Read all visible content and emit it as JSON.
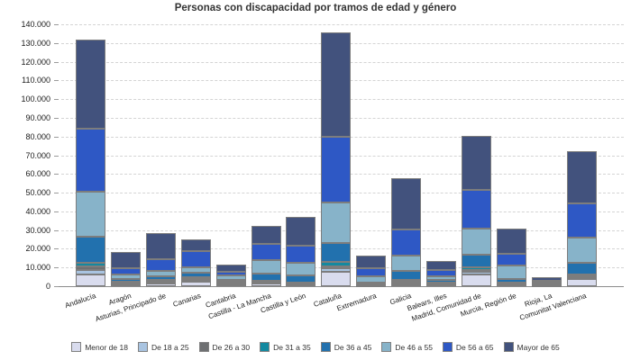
{
  "title": "Personas con discapacidad por tramos de edad y género",
  "chart_data": {
    "type": "bar",
    "stacked": true,
    "title": "Personas con discapacidad por tramos de edad y género",
    "xlabel": "",
    "ylabel": "",
    "ylim": [
      0,
      140000
    ],
    "ytick_step": 10000,
    "ytick_labels": [
      "0",
      "10.000",
      "20.000",
      "30.000",
      "40.000",
      "50.000",
      "60.000",
      "70.000",
      "80.000",
      "90.000",
      "100.000",
      "110.000",
      "120.000",
      "130.000",
      "140.000"
    ],
    "grid": "horizontal-dashed",
    "legend_position": "bottom",
    "categories": [
      "Andalucía",
      "Aragón",
      "Asturias, Principado de",
      "Canarias",
      "Cantabria",
      "Castilla - La Mancha",
      "Castilla y León",
      "Cataluña",
      "Extremadura",
      "Galicia",
      "Balears, Illes",
      "Madrid, Comunidad de",
      "Murcia, Región de",
      "Rioja, La",
      "Comunitat Valenciana"
    ],
    "series": [
      {
        "name": "Menor de 18",
        "color": "#d9dcee",
        "values": [
          6300,
          1200,
          1400,
          2500,
          1100,
          1300,
          900,
          7700,
          400,
          1200,
          1100,
          6400,
          800,
          300,
          3800
        ]
      },
      {
        "name": "De 18 a 25",
        "color": "#a9c4e1",
        "values": [
          2400,
          500,
          700,
          700,
          500,
          500,
          400,
          2100,
          200,
          700,
          400,
          1300,
          400,
          100,
          800
        ]
      },
      {
        "name": "De 26 a 30",
        "color": "#6e7072",
        "values": [
          1900,
          400,
          700,
          1000,
          400,
          400,
          300,
          1000,
          200,
          700,
          300,
          1000,
          300,
          100,
          600
        ]
      },
      {
        "name": "De 31 a 35",
        "color": "#1389a0",
        "values": [
          2000,
          500,
          800,
          800,
          500,
          500,
          400,
          2000,
          200,
          900,
          300,
          1300,
          400,
          100,
          1100
        ]
      },
      {
        "name": "De 36 a 45",
        "color": "#2271ae",
        "values": [
          14000,
          1400,
          1600,
          2200,
          1100,
          4000,
          3800,
          10400,
          800,
          4500,
          1300,
          6700,
          1900,
          500,
          6400
        ]
      },
      {
        "name": "De 46 a 55",
        "color": "#87b3c9",
        "values": [
          24000,
          2300,
          2900,
          3100,
          2200,
          7100,
          6900,
          21600,
          3400,
          8400,
          1900,
          14200,
          7100,
          700,
          13200
        ]
      },
      {
        "name": "De 56 a 65",
        "color": "#2e58c5",
        "values": [
          33500,
          3500,
          6400,
          8400,
          1900,
          9000,
          8800,
          35200,
          4300,
          14100,
          3500,
          20500,
          6600,
          1200,
          18200
        ]
      },
      {
        "name": "Mayor de 65",
        "color": "#42527d",
        "values": [
          47700,
          8300,
          14000,
          6500,
          3800,
          9400,
          15700,
          55800,
          6700,
          27400,
          4800,
          28900,
          13100,
          1700,
          27900
        ]
      }
    ]
  }
}
